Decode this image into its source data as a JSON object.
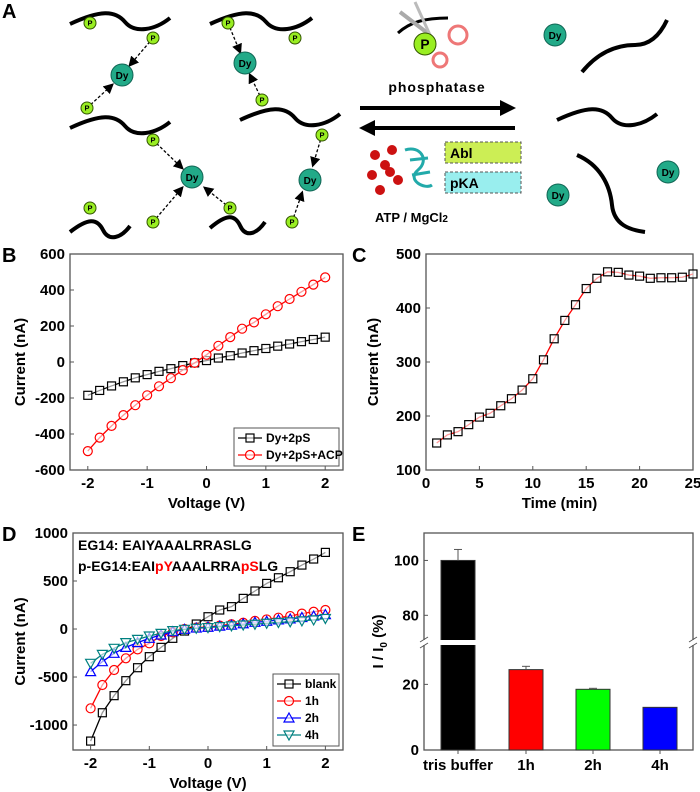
{
  "panel_labels": {
    "a": "A",
    "b": "B",
    "c": "C",
    "d": "D",
    "e": "E"
  },
  "schematic": {
    "p_label": "P",
    "dy_label": "Dy",
    "phosphatase": "phosphatase",
    "kinase_1": "Abl",
    "kinase_2": "pKA",
    "cofactor": "ATP / MgCl",
    "cofactor_sub": "2",
    "colors": {
      "phosphate": "#99ee22",
      "dysprosium": "#22aa88",
      "abl_box": "#ccee55",
      "pka_box": "#99eeee",
      "scissors": "#ee7777"
    }
  },
  "chart_data": [
    {
      "id": "B",
      "type": "line",
      "xlabel": "Voltage (V)",
      "ylabel": "Current (nA)",
      "xlim": [
        -2.3,
        2.3
      ],
      "ylim": [
        -600,
        600
      ],
      "xticks": [
        -2,
        -1,
        0,
        1,
        2
      ],
      "yticks": [
        -600,
        -400,
        -200,
        0,
        200,
        400,
        600
      ],
      "legend": "bottom-right",
      "x": [
        -2,
        -1.8,
        -1.6,
        -1.4,
        -1.2,
        -1,
        -0.8,
        -0.6,
        -0.4,
        -0.2,
        0,
        0.2,
        0.4,
        0.6,
        0.8,
        1,
        1.2,
        1.4,
        1.6,
        1.8,
        2
      ],
      "series": [
        {
          "name": "Dy+2pS",
          "color": "#000000",
          "marker": "square",
          "values": [
            -185,
            -158,
            -133,
            -110,
            -88,
            -70,
            -52,
            -37,
            -20,
            -5,
            8,
            22,
            35,
            50,
            63,
            75,
            88,
            100,
            113,
            125,
            138
          ]
        },
        {
          "name": "Dy+2pS+ACP",
          "color": "#ff0000",
          "marker": "circle",
          "values": [
            -495,
            -420,
            -355,
            -295,
            -240,
            -185,
            -135,
            -90,
            -45,
            -5,
            40,
            90,
            138,
            185,
            220,
            265,
            310,
            350,
            390,
            430,
            470
          ]
        }
      ]
    },
    {
      "id": "C",
      "type": "line",
      "xlabel": "Time (min)",
      "ylabel": "Current (nA)",
      "xlim": [
        0,
        25
      ],
      "ylim": [
        100,
        500
      ],
      "xticks": [
        0,
        5,
        10,
        15,
        20,
        25
      ],
      "yticks": [
        100,
        200,
        300,
        400,
        500
      ],
      "x": [
        1,
        2,
        3,
        4,
        5,
        6,
        7,
        8,
        9,
        10,
        11,
        12,
        13,
        14,
        15,
        16,
        17,
        18,
        19,
        20,
        21,
        22,
        23,
        24,
        25
      ],
      "series": [
        {
          "color": "#ff0000",
          "marker": "square",
          "values": [
            150,
            165,
            171,
            184,
            198,
            205,
            219,
            232,
            248,
            269,
            304,
            343,
            377,
            406,
            436,
            455,
            467,
            466,
            461,
            459,
            455,
            456,
            456,
            457,
            463
          ]
        }
      ]
    },
    {
      "id": "D",
      "type": "line",
      "xlabel": "Voltage (V)",
      "ylabel": "Current (nA)",
      "xlim": [
        -2.3,
        2.3
      ],
      "ylim": [
        -1260,
        1000
      ],
      "xticks": [
        -2,
        -1,
        0,
        1,
        2
      ],
      "yticks": [
        -1000,
        -500,
        0,
        500,
        1000
      ],
      "legend": "bottom-right",
      "annotations": [
        {
          "parts": [
            {
              "text": "EG14: EAIYAAALRRASLG",
              "color": "#000000"
            }
          ]
        },
        {
          "parts": [
            {
              "text": "p-EG14:EAI",
              "color": "#000000"
            },
            {
              "text": "pY",
              "color": "#ff0000"
            },
            {
              "text": "AAALRRA",
              "color": "#000000"
            },
            {
              "text": "pS",
              "color": "#ff0000"
            },
            {
              "text": "LG",
              "color": "#000000"
            }
          ]
        }
      ],
      "x": [
        -2,
        -1.8,
        -1.6,
        -1.4,
        -1.2,
        -1,
        -0.8,
        -0.6,
        -0.4,
        -0.2,
        0,
        0.2,
        0.4,
        0.6,
        0.8,
        1,
        1.2,
        1.4,
        1.6,
        1.8,
        2
      ],
      "series": [
        {
          "name": "blank",
          "color": "#000000",
          "marker": "square",
          "values": [
            -1167,
            -872,
            -694,
            -538,
            -403,
            -288,
            -191,
            -97,
            -21,
            52,
            128,
            198,
            233,
            319,
            396,
            475,
            534,
            597,
            666,
            729,
            798
          ]
        },
        {
          "name": "1h",
          "color": "#ff0000",
          "marker": "circle",
          "values": [
            -826,
            -583,
            -427,
            -305,
            -212,
            -149,
            -73,
            -35,
            0,
            15,
            20,
            35,
            50,
            65,
            85,
            100,
            118,
            135,
            160,
            180,
            198
          ]
        },
        {
          "name": "2h",
          "color": "#0000ff",
          "marker": "triangle-up",
          "values": [
            -444,
            -340,
            -253,
            -191,
            -142,
            -97,
            -62,
            -28,
            -3,
            10,
            18,
            30,
            40,
            55,
            70,
            80,
            95,
            105,
            120,
            135,
            150
          ]
        },
        {
          "name": "4h",
          "color": "#008080",
          "marker": "triangle-down",
          "values": [
            -357,
            -264,
            -201,
            -142,
            -108,
            -73,
            -45,
            -17,
            -3,
            8,
            15,
            25,
            33,
            42,
            50,
            60,
            68,
            75,
            85,
            95,
            110
          ]
        }
      ]
    },
    {
      "id": "E",
      "type": "bar",
      "ylabel": "I / I",
      "ylabel_sub": "0",
      "ylabel_unit": " (%)",
      "axis_break": [
        32,
        71
      ],
      "ylim": [
        0,
        110
      ],
      "yticks": [
        0,
        20,
        80,
        100
      ],
      "categories": [
        "tris buffer",
        "1h",
        "2h",
        "4h"
      ],
      "values": [
        100,
        24.5,
        18.5,
        13
      ],
      "errors": [
        4,
        1,
        0.3,
        0
      ],
      "colors": [
        "#000000",
        "#ff0000",
        "#00ff00",
        "#0000ff"
      ]
    }
  ]
}
